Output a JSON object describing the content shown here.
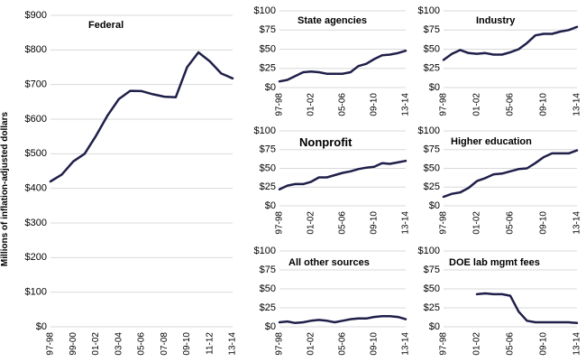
{
  "chart_data": [
    {
      "type": "line",
      "title": "Federal",
      "ylabel": "Millions of inflation-adjusted dollars",
      "ylim": [
        0,
        900
      ],
      "yticks": [
        "$0",
        "$100",
        "$200",
        "$300",
        "$400",
        "$500",
        "$600",
        "$700",
        "$800",
        "$900"
      ],
      "xticks": [
        "97-98",
        "99-00",
        "01-02",
        "03-04",
        "05-06",
        "07-08",
        "09-10",
        "11-12",
        "13-14"
      ],
      "grid": true,
      "color": "#1f1f4a",
      "series": [
        {
          "x": [
            "97-98",
            "98-99",
            "99-00",
            "00-01",
            "01-02",
            "02-03",
            "03-04",
            "04-05",
            "05-06",
            "06-07",
            "07-08",
            "08-09",
            "09-10",
            "10-11",
            "11-12",
            "12-13",
            "13-14"
          ],
          "values": [
            420,
            440,
            478,
            500,
            552,
            610,
            658,
            682,
            681,
            672,
            665,
            663,
            750,
            793,
            767,
            732,
            718
          ]
        }
      ]
    },
    {
      "type": "line",
      "title": "State agencies",
      "ylim": [
        0,
        100
      ],
      "yticks": [
        "$0",
        "$25",
        "$50",
        "$75",
        "$100"
      ],
      "xticks": [
        "97-98",
        "01-02",
        "05-06",
        "09-10",
        "13-14"
      ],
      "grid": true,
      "color": "#1f1f4a",
      "series": [
        {
          "x": [
            "97-98",
            "98-99",
            "99-00",
            "00-01",
            "01-02",
            "02-03",
            "03-04",
            "04-05",
            "05-06",
            "06-07",
            "07-08",
            "08-09",
            "09-10",
            "10-11",
            "11-12",
            "12-13",
            "13-14"
          ],
          "values": [
            8,
            10,
            15,
            20,
            21,
            20,
            18,
            18,
            18,
            20,
            28,
            31,
            37,
            42,
            43,
            45,
            48
          ]
        }
      ]
    },
    {
      "type": "line",
      "title": "Industry",
      "ylim": [
        0,
        100
      ],
      "yticks": [
        "$0",
        "$25",
        "$50",
        "$75",
        "$100"
      ],
      "xticks": [
        "97-98",
        "01-02",
        "05-06",
        "09-10",
        "13-14"
      ],
      "grid": true,
      "color": "#1f1f4a",
      "series": [
        {
          "x": [
            "97-98",
            "98-99",
            "99-00",
            "00-01",
            "01-02",
            "02-03",
            "03-04",
            "04-05",
            "05-06",
            "06-07",
            "07-08",
            "08-09",
            "09-10",
            "10-11",
            "11-12",
            "12-13",
            "13-14"
          ],
          "values": [
            36,
            44,
            49,
            45,
            44,
            45,
            43,
            43,
            46,
            50,
            58,
            68,
            70,
            70,
            73,
            75,
            79
          ]
        }
      ]
    },
    {
      "type": "line",
      "title": "Nonprofit",
      "ylim": [
        0,
        100
      ],
      "yticks": [
        "$0",
        "$25",
        "$50",
        "$75",
        "$100"
      ],
      "xticks": [
        "97-98",
        "01-02",
        "05-06",
        "09-10",
        "13-14"
      ],
      "grid": true,
      "color": "#1f1f4a",
      "series": [
        {
          "x": [
            "97-98",
            "98-99",
            "99-00",
            "00-01",
            "01-02",
            "02-03",
            "03-04",
            "04-05",
            "05-06",
            "06-07",
            "07-08",
            "08-09",
            "09-10",
            "10-11",
            "11-12",
            "12-13",
            "13-14"
          ],
          "values": [
            22,
            27,
            29,
            29,
            32,
            38,
            38,
            41,
            44,
            46,
            49,
            51,
            52,
            57,
            56,
            58,
            60
          ]
        }
      ]
    },
    {
      "type": "line",
      "title": "Higher education",
      "ylim": [
        0,
        100
      ],
      "yticks": [
        "$0",
        "$25",
        "$50",
        "$75",
        "$100"
      ],
      "xticks": [
        "97-98",
        "01-02",
        "05-06",
        "09-10",
        "13-14"
      ],
      "grid": true,
      "color": "#1f1f4a",
      "series": [
        {
          "x": [
            "97-98",
            "98-99",
            "99-00",
            "00-01",
            "01-02",
            "02-03",
            "03-04",
            "04-05",
            "05-06",
            "06-07",
            "07-08",
            "08-09",
            "09-10",
            "10-11",
            "11-12",
            "12-13",
            "13-14"
          ],
          "values": [
            12,
            16,
            18,
            24,
            33,
            37,
            42,
            43,
            46,
            49,
            50,
            57,
            65,
            70,
            70,
            70,
            74
          ]
        }
      ]
    },
    {
      "type": "line",
      "title": "All other sources",
      "ylim": [
        0,
        100
      ],
      "yticks": [
        "$0",
        "$25",
        "$50",
        "$75",
        "$100"
      ],
      "xticks": [
        "97-98",
        "01-02",
        "05-06",
        "09-10",
        "13-14"
      ],
      "grid": true,
      "color": "#1f1f4a",
      "series": [
        {
          "x": [
            "97-98",
            "98-99",
            "99-00",
            "00-01",
            "01-02",
            "02-03",
            "03-04",
            "04-05",
            "05-06",
            "06-07",
            "07-08",
            "08-09",
            "09-10",
            "10-11",
            "11-12",
            "12-13",
            "13-14"
          ],
          "values": [
            6,
            7,
            5,
            6,
            8,
            9,
            8,
            6,
            8,
            10,
            11,
            11,
            13,
            14,
            14,
            13,
            10
          ]
        }
      ]
    },
    {
      "type": "line",
      "title": "DOE lab mgmt fees",
      "ylim": [
        0,
        100
      ],
      "yticks": [
        "$0",
        "$25",
        "$50",
        "$75",
        "$100"
      ],
      "xticks": [
        "97-98",
        "01-02",
        "05-06",
        "09-10",
        "13-14"
      ],
      "grid": true,
      "color": "#1f1f4a",
      "series": [
        {
          "x": [
            "01-02",
            "02-03",
            "03-04",
            "04-05",
            "05-06",
            "06-07",
            "07-08",
            "08-09",
            "09-10",
            "10-11",
            "11-12",
            "12-13",
            "13-14"
          ],
          "values": [
            43,
            44,
            43,
            43,
            41,
            20,
            8,
            6,
            6,
            6,
            6,
            6,
            5
          ]
        }
      ]
    }
  ]
}
